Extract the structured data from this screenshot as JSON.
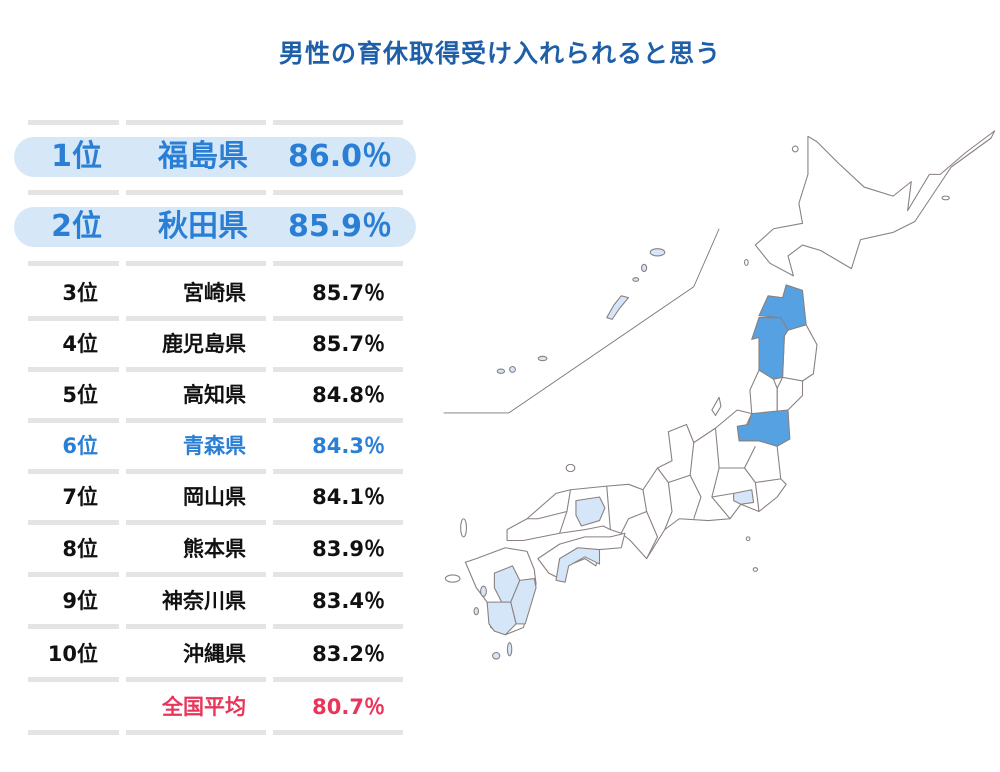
{
  "title": "男性の育休取得受け入れられると思う",
  "colors": {
    "title": "#1f5fa8",
    "highlight": "#2a7fd4",
    "average": "#e8365a",
    "map_top": "#55a1e2",
    "map_rank": "#d4e6f8"
  },
  "ranking": [
    {
      "rank": "1位",
      "prefecture": "福島県",
      "percent": "86.0％"
    },
    {
      "rank": "2位",
      "prefecture": "秋田県",
      "percent": "85.9％"
    },
    {
      "rank": "3位",
      "prefecture": "宮崎県",
      "percent": "85.7％"
    },
    {
      "rank": "4位",
      "prefecture": "鹿児島県",
      "percent": "85.7％"
    },
    {
      "rank": "5位",
      "prefecture": "高知県",
      "percent": "84.8％"
    },
    {
      "rank": "6位",
      "prefecture": "青森県",
      "percent": "84.3％"
    },
    {
      "rank": "7位",
      "prefecture": "岡山県",
      "percent": "84.1％"
    },
    {
      "rank": "8位",
      "prefecture": "熊本県",
      "percent": "83.9％"
    },
    {
      "rank": "9位",
      "prefecture": "神奈川県",
      "percent": "83.4％"
    },
    {
      "rank": "10位",
      "prefecture": "沖縄県",
      "percent": "83.2％"
    }
  ],
  "average": {
    "label": "全国平均",
    "percent": "80.7％"
  }
}
